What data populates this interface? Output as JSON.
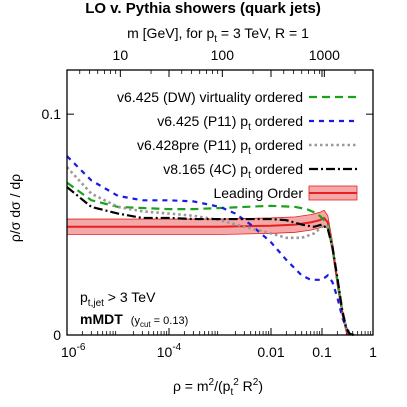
{
  "chart_data": {
    "type": "line",
    "title": "LO v. Pythia showers (quark jets)",
    "top_axis": {
      "label_main": "m [GeV], for p",
      "label_sub": "t",
      "label_rest": " = 3 TeV, R = 1",
      "ticks": [
        {
          "value": 10,
          "label": "10"
        },
        {
          "value": 100,
          "label": "100"
        },
        {
          "value": 1000,
          "label": "1000"
        }
      ]
    },
    "xlabel": {
      "pre": "ρ = m",
      "sup1": "2",
      "mid": "/(p",
      "sub": "t",
      "sup2": "2",
      "post": " R",
      "sup3": "2",
      "end": ")"
    },
    "ylabel": "ρ/σ dσ / dρ",
    "x_scale": "log",
    "xlim": [
      1e-06,
      1
    ],
    "ylim": [
      0,
      0.12
    ],
    "x_ticks": [
      {
        "value": 1e-06,
        "label": "10",
        "exp": "-6"
      },
      {
        "value": 0.0001,
        "label": "10",
        "exp": "-4"
      },
      {
        "value": 0.01,
        "label": "0.01",
        "exp": ""
      },
      {
        "value": 0.1,
        "label": "0.1",
        "exp": ""
      },
      {
        "value": 1,
        "label": "1",
        "exp": ""
      }
    ],
    "y_ticks": [
      {
        "value": 0,
        "label": "0"
      },
      {
        "value": 0.1,
        "label": "0.1"
      }
    ],
    "annotations": {
      "ptjet_main": "p",
      "ptjet_sub": "t,jet",
      "ptjet_rest": " > 3 TeV",
      "mmdt": "mMDT",
      "ycut_open": "(y",
      "ycut_sub": "cut",
      "ycut_rest": " = 0.13)"
    },
    "legend_position": "top-right",
    "series": [
      {
        "name": "v6.425 (DW) virtuality ordered",
        "name_parts": [
          "v6.425 (DW) virtuality ordered",
          "",
          ""
        ],
        "color": "#1aa31a",
        "dash": "8,5",
        "width": 2.2,
        "points": [
          [
            1e-06,
            0.069
          ],
          [
            3e-06,
            0.061
          ],
          [
            1e-05,
            0.058
          ],
          [
            3e-05,
            0.0575
          ],
          [
            0.0001,
            0.057
          ],
          [
            0.0003,
            0.057
          ],
          [
            0.001,
            0.0575
          ],
          [
            0.003,
            0.058
          ],
          [
            0.01,
            0.0585
          ],
          [
            0.03,
            0.058
          ],
          [
            0.05,
            0.057
          ],
          [
            0.08,
            0.055
          ],
          [
            0.1,
            0.053
          ],
          [
            0.13,
            0.05
          ],
          [
            0.16,
            0.04
          ],
          [
            0.2,
            0.025
          ],
          [
            0.25,
            0.011
          ],
          [
            0.3,
            0.003
          ],
          [
            0.35,
            0.0005
          ],
          [
            0.42,
            0
          ]
        ]
      },
      {
        "name": "v6.425 (P11) pt ordered",
        "name_parts": [
          "v6.425 (P11) p",
          "t",
          " ordered"
        ],
        "color": "#1a1ae6",
        "dash": "5,5",
        "width": 2.2,
        "points": [
          [
            1e-06,
            0.081
          ],
          [
            3e-06,
            0.07
          ],
          [
            1e-05,
            0.063
          ],
          [
            3e-05,
            0.061
          ],
          [
            0.0001,
            0.061
          ],
          [
            0.0003,
            0.0605
          ],
          [
            0.001,
            0.058
          ],
          [
            0.002,
            0.055
          ],
          [
            0.004,
            0.05
          ],
          [
            0.01,
            0.042
          ],
          [
            0.02,
            0.034
          ],
          [
            0.04,
            0.027
          ],
          [
            0.06,
            0.025
          ],
          [
            0.1,
            0.025
          ],
          [
            0.13,
            0.027
          ],
          [
            0.16,
            0.024
          ],
          [
            0.2,
            0.017
          ],
          [
            0.25,
            0.008
          ],
          [
            0.3,
            0.003
          ],
          [
            0.35,
            0.001
          ],
          [
            0.42,
            0
          ]
        ]
      },
      {
        "name": "v6.428pre (P11) pt ordered",
        "name_parts": [
          "v6.428pre (P11) p",
          "t",
          " ordered"
        ],
        "color": "#999999",
        "dash": "2.5,3",
        "width": 2.6,
        "points": [
          [
            1e-06,
            0.076
          ],
          [
            3e-06,
            0.064
          ],
          [
            1e-05,
            0.058
          ],
          [
            3e-05,
            0.056
          ],
          [
            0.0001,
            0.055
          ],
          [
            0.0003,
            0.054
          ],
          [
            0.001,
            0.052
          ],
          [
            0.003,
            0.049
          ],
          [
            0.01,
            0.046
          ],
          [
            0.02,
            0.044
          ],
          [
            0.04,
            0.044
          ],
          [
            0.07,
            0.046
          ],
          [
            0.1,
            0.049
          ],
          [
            0.13,
            0.049
          ],
          [
            0.16,
            0.04
          ],
          [
            0.2,
            0.025
          ],
          [
            0.25,
            0.011
          ],
          [
            0.3,
            0.003
          ],
          [
            0.35,
            0.0005
          ],
          [
            0.42,
            0
          ]
        ]
      },
      {
        "name": "v8.165 (4C) pt ordered",
        "name_parts": [
          "v8.165 (4C) p",
          "t",
          " ordered"
        ],
        "color": "#000000",
        "dash": "9,3,2,3",
        "width": 2.2,
        "points": [
          [
            1e-06,
            0.067
          ],
          [
            3e-06,
            0.058
          ],
          [
            1e-05,
            0.055
          ],
          [
            3e-05,
            0.053
          ],
          [
            0.0001,
            0.053
          ],
          [
            0.0003,
            0.0525
          ],
          [
            0.001,
            0.0525
          ],
          [
            0.003,
            0.0525
          ],
          [
            0.01,
            0.0525
          ],
          [
            0.02,
            0.052
          ],
          [
            0.04,
            0.05
          ],
          [
            0.07,
            0.049
          ],
          [
            0.1,
            0.05
          ],
          [
            0.13,
            0.048
          ],
          [
            0.16,
            0.04
          ],
          [
            0.2,
            0.026
          ],
          [
            0.25,
            0.011
          ],
          [
            0.3,
            0.003
          ],
          [
            0.35,
            0.0005
          ],
          [
            0.42,
            0
          ]
        ]
      }
    ],
    "leading_order": {
      "name": "Leading Order",
      "color": "#e62020",
      "band_color": "#f5a8a8",
      "points": [
        [
          1e-06,
          0.049
        ],
        [
          1e-05,
          0.049
        ],
        [
          0.0001,
          0.049
        ],
        [
          0.001,
          0.049
        ],
        [
          0.01,
          0.0495
        ],
        [
          0.03,
          0.05
        ],
        [
          0.06,
          0.051
        ],
        [
          0.09,
          0.052
        ],
        [
          0.11,
          0.053
        ],
        [
          0.13,
          0.051
        ],
        [
          0.16,
          0.04
        ],
        [
          0.2,
          0.024
        ],
        [
          0.25,
          0.01
        ],
        [
          0.3,
          0.002
        ],
        [
          0.33,
          0
        ]
      ],
      "band_halfwidth": [
        0.0035,
        0.0035,
        0.0035,
        0.0035,
        0.0035,
        0.0035,
        0.0035,
        0.0035,
        0.0035,
        0.003,
        0.0025,
        0.002,
        0.0015,
        0.0005,
        0
      ]
    }
  }
}
